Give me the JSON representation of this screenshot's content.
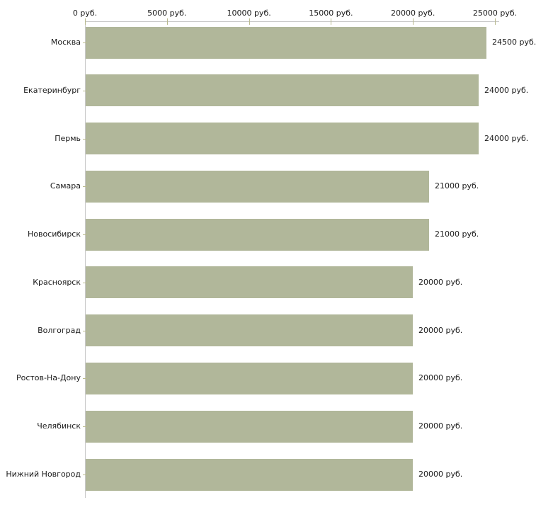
{
  "chart_data": {
    "type": "bar",
    "orientation": "horizontal",
    "title": "",
    "xlabel": "",
    "ylabel": "",
    "unit": "руб.",
    "categories": [
      "Москва",
      "Екатеринбург",
      "Пермь",
      "Самара",
      "Новосибирск",
      "Красноярск",
      "Волгоград",
      "Ростов-На-Дону",
      "Челябинск",
      "Нижний Новгород"
    ],
    "values": [
      24500,
      24000,
      24000,
      21000,
      21000,
      20000,
      20000,
      20000,
      20000,
      20000
    ],
    "value_labels": [
      "24500 руб.",
      "24000 руб.",
      "24000 руб.",
      "21000 руб.",
      "21000 руб.",
      "20000 руб.",
      "20000 руб.",
      "20000 руб.",
      "20000 руб.",
      "20000 руб."
    ],
    "x_ticks": [
      0,
      5000,
      10000,
      15000,
      20000,
      25000
    ],
    "x_tick_labels": [
      "0 руб.",
      "5000 руб.",
      "10000 руб.",
      "15000 руб.",
      "20000 руб.",
      "25000 руб."
    ],
    "xlim": [
      0,
      25000
    ],
    "grid": false,
    "legend": null,
    "colors": {
      "bar": "#b1b79a",
      "axis": "#c9c9c9",
      "tick": "#b9ba8e",
      "text": "#1a1a1a",
      "background": "#ffffff"
    }
  }
}
